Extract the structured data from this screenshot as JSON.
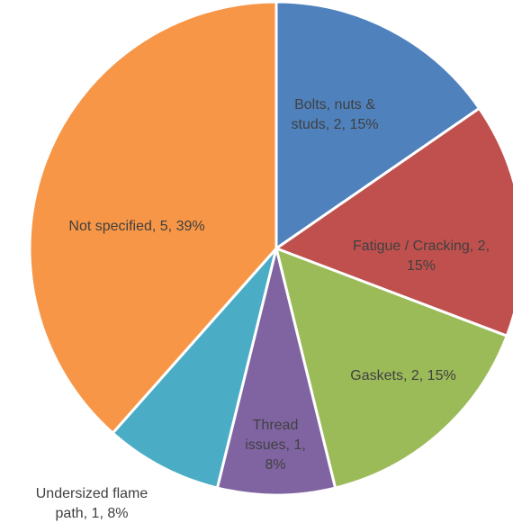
{
  "chart_data": {
    "type": "pie",
    "title": "",
    "slices": [
      {
        "label": "Bolts, nuts & studs",
        "value": 2,
        "percent": "15%",
        "color": "#4f81bd",
        "text_lines": [
          "Bolts, nuts &",
          "studs, 2, 15%"
        ]
      },
      {
        "label": "Fatigue / Cracking",
        "value": 2,
        "percent": "15%",
        "color": "#c0504d",
        "text_lines": [
          "Fatigue / Cracking, 2,",
          "15%"
        ]
      },
      {
        "label": "Gaskets",
        "value": 2,
        "percent": "15%",
        "color": "#9bbb59",
        "text_lines": [
          "Gaskets, 2, 15%"
        ]
      },
      {
        "label": "Thread issues",
        "value": 1,
        "percent": "8%",
        "color": "#8064a2",
        "text_lines": [
          "Thread",
          "issues, 1,",
          "8%"
        ]
      },
      {
        "label": "Undersized flame path",
        "value": 1,
        "percent": "8%",
        "color": "#4bacc6",
        "text_lines": [
          "Undersized flame",
          "path, 1, 8%"
        ]
      },
      {
        "label": "Not specified",
        "value": 5,
        "percent": "39%",
        "color": "#f79646",
        "text_lines": [
          "Not specified, 5, 39%"
        ]
      }
    ],
    "label_color": "#404040",
    "legend": "none"
  }
}
